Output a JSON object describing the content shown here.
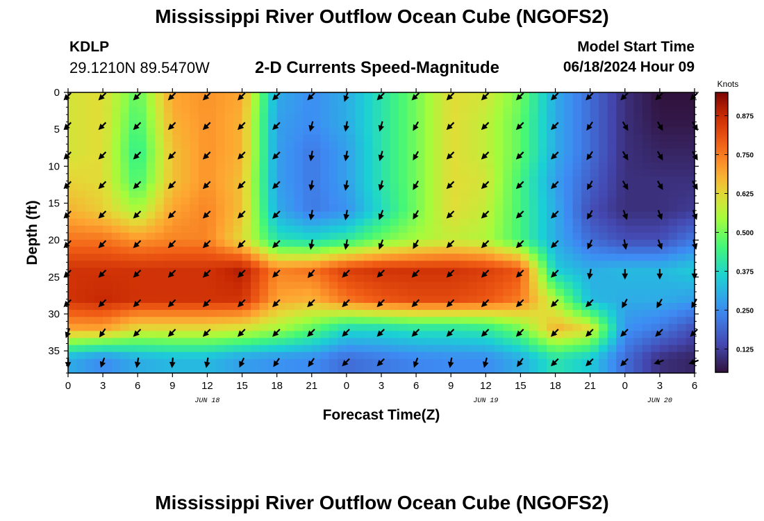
{
  "header": {
    "title": "Mississippi River Outflow Ocean Cube (NGOFS2)",
    "station_id": "KDLP",
    "station_coords": "29.1210N  89.5470W",
    "product": "2-D Currents Speed-Magnitude",
    "model_start_label": "Model Start Time",
    "model_start_value": "06/18/2024 Hour 09"
  },
  "footer": {
    "title": "Mississippi River Outflow Ocean Cube (NGOFS2)"
  },
  "chart_data": {
    "type": "heatmap",
    "xlabel": "Forecast Time(Z)",
    "ylabel": "Depth (ft)",
    "x_range_hours": [
      0,
      54
    ],
    "y_range_ft": [
      0,
      38
    ],
    "x_tick_hours": [
      0,
      3,
      6,
      9,
      12,
      15,
      18,
      21,
      24,
      27,
      30,
      33,
      36,
      39,
      42,
      45,
      48,
      51,
      54
    ],
    "x_tick_labels": [
      "0",
      "3",
      "6",
      "9",
      "12",
      "15",
      "18",
      "21",
      "0",
      "3",
      "6",
      "9",
      "12",
      "15",
      "18",
      "21",
      "0",
      "3",
      "6"
    ],
    "y_ticks": [
      0,
      5,
      10,
      15,
      20,
      25,
      30,
      35
    ],
    "y_tick_labels": [
      "0",
      "5",
      "10",
      "15",
      "20",
      "25",
      "30",
      "35"
    ],
    "date_labels": [
      {
        "hour": 12,
        "label": "JUN 18"
      },
      {
        "hour": 36,
        "label": "JUN 19"
      },
      {
        "hour": 51,
        "label": "JUN 20"
      }
    ],
    "colorbar": {
      "title": "Knots",
      "range": [
        0.05,
        0.95
      ],
      "ticks": [
        0.125,
        0.25,
        0.375,
        0.5,
        0.625,
        0.75,
        0.875
      ],
      "tick_labels": [
        "0.125",
        "0.250",
        "0.375",
        "0.500",
        "0.625",
        "0.750",
        "0.875"
      ]
    },
    "grid_times": [
      0,
      3,
      6,
      9,
      12,
      15,
      18,
      21,
      24,
      27,
      30,
      33,
      36,
      39,
      42,
      45,
      48,
      51,
      54
    ],
    "grid_depths": [
      0,
      4,
      8,
      12,
      16,
      20,
      24,
      28,
      32,
      36
    ],
    "speed_knots": [
      [
        0.6,
        0.62,
        0.48,
        0.7,
        0.72,
        0.7,
        0.3,
        0.25,
        0.3,
        0.4,
        0.5,
        0.62,
        0.6,
        0.5,
        0.3,
        0.2,
        0.1,
        0.05,
        0.05
      ],
      [
        0.6,
        0.62,
        0.45,
        0.68,
        0.72,
        0.68,
        0.28,
        0.25,
        0.3,
        0.4,
        0.5,
        0.62,
        0.58,
        0.48,
        0.3,
        0.2,
        0.1,
        0.06,
        0.06
      ],
      [
        0.6,
        0.62,
        0.42,
        0.66,
        0.72,
        0.68,
        0.28,
        0.22,
        0.28,
        0.4,
        0.5,
        0.62,
        0.58,
        0.48,
        0.3,
        0.2,
        0.1,
        0.08,
        0.08
      ],
      [
        0.63,
        0.62,
        0.45,
        0.66,
        0.72,
        0.66,
        0.28,
        0.22,
        0.28,
        0.4,
        0.5,
        0.62,
        0.6,
        0.45,
        0.28,
        0.18,
        0.1,
        0.1,
        0.1
      ],
      [
        0.68,
        0.64,
        0.55,
        0.7,
        0.74,
        0.66,
        0.3,
        0.22,
        0.26,
        0.38,
        0.5,
        0.62,
        0.58,
        0.45,
        0.3,
        0.15,
        0.1,
        0.1,
        0.12
      ],
      [
        0.76,
        0.76,
        0.72,
        0.74,
        0.74,
        0.62,
        0.4,
        0.38,
        0.42,
        0.5,
        0.55,
        0.58,
        0.56,
        0.45,
        0.3,
        0.2,
        0.15,
        0.15,
        0.22
      ],
      [
        0.86,
        0.86,
        0.86,
        0.86,
        0.86,
        0.9,
        0.74,
        0.76,
        0.84,
        0.86,
        0.86,
        0.86,
        0.84,
        0.8,
        0.35,
        0.3,
        0.32,
        0.32,
        0.35
      ],
      [
        0.86,
        0.88,
        0.86,
        0.86,
        0.86,
        0.86,
        0.7,
        0.68,
        0.76,
        0.8,
        0.82,
        0.82,
        0.8,
        0.75,
        0.55,
        0.32,
        0.3,
        0.3,
        0.28
      ],
      [
        0.7,
        0.7,
        0.62,
        0.62,
        0.62,
        0.6,
        0.55,
        0.48,
        0.38,
        0.38,
        0.4,
        0.4,
        0.42,
        0.5,
        0.68,
        0.62,
        0.26,
        0.22,
        0.15
      ],
      [
        0.3,
        0.25,
        0.3,
        0.32,
        0.32,
        0.28,
        0.26,
        0.25,
        0.2,
        0.22,
        0.24,
        0.25,
        0.25,
        0.3,
        0.4,
        0.35,
        0.2,
        0.1,
        0.08
      ]
    ],
    "vector_times": [
      0,
      3,
      6,
      9,
      12,
      15,
      18,
      21,
      24,
      27,
      30,
      33,
      36,
      39,
      42,
      45,
      48,
      51,
      54
    ],
    "vector_depths": [
      0,
      4,
      8,
      12,
      16,
      20,
      24,
      28,
      32,
      36
    ],
    "vector_directions_deg": [
      [
        135,
        135,
        135,
        135,
        135,
        135,
        135,
        135,
        110,
        135,
        135,
        135,
        135,
        135,
        135,
        135,
        135,
        135,
        135
      ],
      [
        135,
        135,
        135,
        135,
        135,
        135,
        135,
        105,
        100,
        105,
        120,
        135,
        135,
        135,
        135,
        125,
        60,
        60,
        60
      ],
      [
        135,
        135,
        135,
        135,
        135,
        135,
        135,
        100,
        100,
        105,
        120,
        135,
        135,
        135,
        135,
        125,
        60,
        60,
        60
      ],
      [
        135,
        135,
        135,
        135,
        135,
        135,
        135,
        100,
        100,
        105,
        120,
        135,
        135,
        135,
        135,
        120,
        60,
        60,
        60
      ],
      [
        135,
        135,
        135,
        135,
        135,
        135,
        135,
        100,
        100,
        110,
        120,
        135,
        135,
        135,
        135,
        120,
        70,
        70,
        70
      ],
      [
        135,
        135,
        135,
        135,
        135,
        135,
        135,
        100,
        100,
        110,
        120,
        135,
        135,
        135,
        135,
        115,
        80,
        70,
        75
      ],
      [
        135,
        135,
        135,
        135,
        135,
        135,
        135,
        130,
        135,
        135,
        135,
        135,
        135,
        135,
        135,
        100,
        90,
        90,
        90
      ],
      [
        135,
        135,
        135,
        135,
        135,
        135,
        135,
        135,
        135,
        135,
        135,
        135,
        135,
        135,
        135,
        135,
        120,
        120,
        120
      ],
      [
        110,
        125,
        135,
        135,
        135,
        135,
        135,
        135,
        135,
        135,
        135,
        135,
        135,
        135,
        135,
        135,
        135,
        135,
        135
      ],
      [
        90,
        110,
        100,
        95,
        100,
        115,
        125,
        125,
        135,
        135,
        110,
        100,
        105,
        125,
        135,
        135,
        135,
        160,
        160
      ]
    ]
  }
}
